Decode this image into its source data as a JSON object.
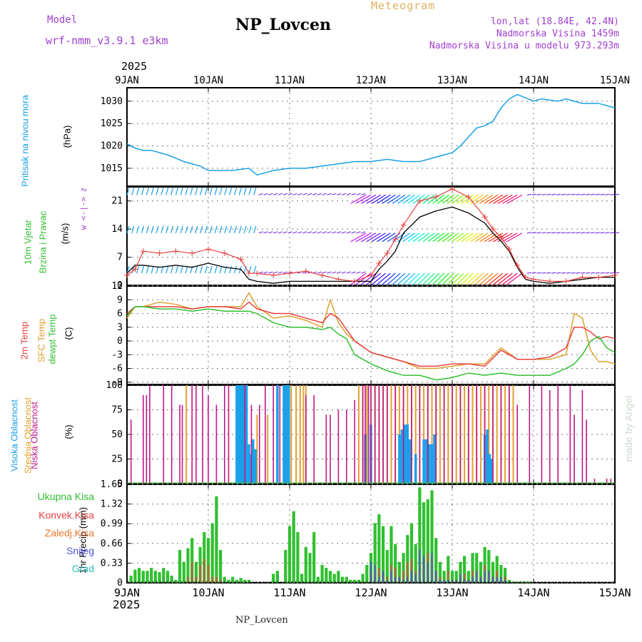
{
  "header": {
    "model_label": "Model",
    "model_value": "wrf-nmm_v3.9.1 e3km",
    "title": "NP_Lovcen",
    "meteogram": "Meteogram",
    "lonlat": "lon,lat (18.84E, 42.4N)",
    "altitude": "Nadmorska Visina 1459m",
    "model_altitude": "Nadmorska Visina u modelu 973.293m",
    "year_top": "2025",
    "year_bottom": "2025",
    "footer": "NP_Lovcen",
    "watermark": "made by Angel"
  },
  "colors": {
    "pressure": "#1aa0e8",
    "temp2m": "#e84040",
    "sfc": "#e0a030",
    "dewpt": "#30c030",
    "wind_obs": "#e84040",
    "wind_model": "#000000",
    "high_cloud": "#1aa0e8",
    "mid_cloud": "#e0a030",
    "low_cloud": "#c01888",
    "total_precip": "#30c030",
    "conv_precip": "#e84040",
    "snow": "#5050e0",
    "purple": "#a040d0"
  },
  "chart_data": [
    {
      "type": "line",
      "id": "pressure",
      "ylabel_left": "Pritisak na nivou mora",
      "unit": "(hPa)",
      "ylim": [
        1011,
        1033
      ],
      "yticks": [
        1015,
        1020,
        1025,
        1030
      ],
      "days": [
        "9JAN",
        "10JAN",
        "11JAN",
        "12JAN",
        "13JAN",
        "14JAN",
        "15JAN"
      ],
      "x": [
        0,
        0.1,
        0.2,
        0.3,
        0.5,
        0.7,
        0.9,
        1.0,
        1.1,
        1.3,
        1.5,
        1.6,
        1.8,
        2.0,
        2.2,
        2.4,
        2.6,
        2.8,
        3.0,
        3.2,
        3.4,
        3.6,
        3.8,
        4.0,
        4.1,
        4.2,
        4.3,
        4.4,
        4.5,
        4.6,
        4.7,
        4.8,
        5.0,
        5.1,
        5.3,
        5.4,
        5.6,
        5.8,
        6.0
      ],
      "y": [
        1020.5,
        1019.5,
        1019,
        1019,
        1018,
        1016.5,
        1015.5,
        1014.5,
        1014.5,
        1014.5,
        1015,
        1013.5,
        1014.5,
        1015,
        1015,
        1015.5,
        1016,
        1016.5,
        1016.5,
        1017,
        1016.5,
        1016.5,
        1017.5,
        1018.5,
        1020,
        1022,
        1024,
        1024.5,
        1025.5,
        1028.5,
        1030.5,
        1031.5,
        1030,
        1030.5,
        1030,
        1030.5,
        1029.5,
        1029.5,
        1028.5
      ]
    },
    {
      "type": "line",
      "id": "wind",
      "ylabel_left": "10m Vjetar",
      "ylabel_right": "Brzina i Pravac",
      "unit": "(m/s)",
      "compass": "w <-|-> z",
      "ylim": [
        0,
        24.5
      ],
      "yticks": [
        0,
        7,
        14,
        21
      ],
      "barb_levels": [
        3,
        13,
        22.5
      ],
      "x": [
        0,
        0.1,
        0.2,
        0.4,
        0.6,
        0.8,
        1.0,
        1.2,
        1.4,
        1.5,
        1.6,
        1.8,
        2.0,
        2.2,
        2.4,
        2.6,
        2.8,
        3.0,
        3.1,
        3.2,
        3.3,
        3.4,
        3.6,
        3.8,
        4.0,
        4.2,
        4.4,
        4.5,
        4.6,
        4.7,
        4.8,
        4.9,
        5.0,
        5.2,
        5.4,
        5.6,
        5.8,
        6.0
      ],
      "obs": [
        2.5,
        4,
        8.5,
        8,
        8.5,
        8,
        9,
        8,
        6.5,
        3,
        3,
        2.5,
        3,
        3.5,
        2.5,
        1.5,
        1,
        2.5,
        5.5,
        8,
        11.5,
        15,
        21,
        22,
        24,
        22,
        17,
        14,
        12,
        9,
        5,
        2,
        1.5,
        1,
        1,
        2,
        2,
        2.5
      ],
      "model": [
        3,
        5,
        5,
        4.5,
        5,
        4.5,
        5.5,
        4.5,
        4,
        1.5,
        1,
        0.5,
        1,
        1,
        1,
        1,
        1,
        1,
        4,
        6,
        8.5,
        13,
        17,
        18.5,
        19.5,
        18,
        15.5,
        13,
        11,
        8.5,
        4.5,
        1.5,
        1,
        0.5,
        1,
        1.5,
        2,
        2
      ]
    },
    {
      "type": "line",
      "id": "temperature",
      "ylabel_a": "2m Temp",
      "ylabel_b": "SFC Temp",
      "ylabel_c": "dewpt Temp",
      "unit": "(C)",
      "ylim": [
        -9.5,
        12
      ],
      "yticks": [
        -9,
        -6,
        -3,
        0,
        3,
        6,
        9,
        12
      ],
      "x": [
        0,
        0.1,
        0.2,
        0.4,
        0.6,
        0.8,
        1.0,
        1.2,
        1.4,
        1.5,
        1.6,
        1.8,
        2.0,
        2.2,
        2.4,
        2.5,
        2.6,
        2.7,
        2.8,
        3.0,
        3.2,
        3.4,
        3.6,
        3.8,
        4.0,
        4.2,
        4.4,
        4.6,
        4.8,
        5.0,
        5.2,
        5.4,
        5.5,
        5.6,
        5.7,
        5.8,
        5.9,
        6.0
      ],
      "t2m": [
        6,
        7.5,
        7.5,
        7.5,
        7.5,
        7,
        7.5,
        7.5,
        7,
        8.5,
        7,
        6,
        6,
        5,
        4,
        6,
        5,
        2.5,
        0,
        -2.5,
        -3.5,
        -4.5,
        -5.5,
        -5.5,
        -5,
        -5,
        -5.5,
        -2,
        -4,
        -4,
        -3.5,
        -1.5,
        3,
        3,
        2,
        0.5,
        1,
        0.5
      ],
      "sfc": [
        5,
        7.5,
        7.5,
        8.5,
        8,
        7,
        7.5,
        7.5,
        7.5,
        10.5,
        7.5,
        5,
        5.5,
        4.5,
        3,
        9,
        4,
        1.5,
        0,
        -2.5,
        -3.5,
        -4.5,
        -6,
        -6,
        -5.5,
        -5,
        -5,
        -1.5,
        -4,
        -4,
        -4,
        -3,
        6,
        5,
        -2,
        -4.5,
        -4.5,
        -5
      ],
      "dewpt": [
        5.5,
        7.5,
        7.5,
        7,
        7,
        6.5,
        7,
        6.5,
        6.5,
        6.5,
        6,
        4,
        3,
        3,
        2.5,
        3,
        1.5,
        0.5,
        -3,
        -5,
        -6.5,
        -7.5,
        -7.5,
        -8.5,
        -8,
        -7,
        -7.5,
        -7,
        -7.5,
        -7.5,
        -7.5,
        -6,
        -5,
        -3,
        0,
        1,
        -1.5,
        -2.5
      ]
    },
    {
      "type": "bar",
      "id": "clouds",
      "ylabel_a": "Visoka Oblacnost",
      "ylabel_b": "Srednja Oblacnost",
      "ylabel_c": "Niska Oblacnost",
      "unit": "(%)",
      "ylim": [
        0,
        100
      ],
      "yticks": [
        0,
        25,
        50,
        75,
        100
      ],
      "high": {
        "x": [
          1.35,
          1.38,
          1.41,
          1.44,
          1.47,
          1.5,
          1.52,
          1.55,
          1.58,
          1.85,
          1.93,
          1.96,
          1.99,
          2.93,
          3.0,
          3.35,
          3.38,
          3.42,
          3.45,
          3.48,
          3.55,
          3.65,
          3.68,
          3.72,
          3.75,
          3.78,
          4.4,
          4.43,
          4.46,
          4.48
        ],
        "v": [
          100,
          100,
          100,
          100,
          100,
          40,
          30,
          45,
          35,
          100,
          100,
          100,
          100,
          50,
          60,
          50,
          55,
          60,
          60,
          45,
          30,
          45,
          45,
          40,
          40,
          50,
          50,
          55,
          30,
          25
        ]
      },
      "mid": {
        "x": [
          0.73,
          1.4,
          1.6,
          1.73,
          1.95,
          2.02,
          2.08,
          2.13,
          2.17,
          2.2,
          2.85,
          2.9,
          2.95,
          3.0,
          3.05,
          3.1,
          3.15,
          3.2,
          3.25,
          3.3,
          3.35,
          3.4,
          3.45,
          3.5,
          3.55,
          3.6,
          3.65,
          3.7,
          3.75,
          3.8,
          3.85,
          3.9,
          3.95,
          4.0,
          4.05,
          4.1,
          4.15,
          4.2,
          4.25,
          4.3,
          4.35,
          4.4,
          4.45,
          4.5,
          4.55,
          4.6,
          4.65,
          4.7,
          4.75
        ],
        "v": [
          100,
          60,
          70,
          70,
          100,
          100,
          100,
          100,
          100,
          100,
          100,
          100,
          100,
          100,
          100,
          100,
          100,
          100,
          100,
          100,
          100,
          100,
          100,
          100,
          100,
          100,
          100,
          100,
          100,
          100,
          100,
          100,
          100,
          100,
          100,
          100,
          100,
          100,
          100,
          100,
          100,
          100,
          100,
          100,
          100,
          100,
          100,
          100,
          100
        ]
      },
      "low": {
        "x": [
          0.05,
          0.2,
          0.24,
          0.28,
          0.45,
          0.55,
          0.65,
          0.68,
          0.8,
          0.85,
          0.93,
          1.0,
          1.1,
          1.2,
          1.25,
          1.45,
          1.53,
          1.63,
          1.7,
          1.8,
          1.88,
          2.2,
          2.3,
          2.45,
          2.5,
          2.6,
          2.7,
          2.8,
          2.9,
          2.93,
          2.97,
          3.0,
          3.05,
          3.1,
          3.15,
          3.2,
          3.3,
          3.4,
          3.5,
          3.6,
          3.7,
          3.8,
          3.9,
          4.0,
          4.1,
          4.2,
          4.3,
          4.4,
          4.5,
          4.6,
          4.7,
          4.8,
          4.95,
          5.1,
          5.2,
          5.3,
          5.45,
          5.5,
          5.6,
          5.65,
          5.75,
          5.9,
          5.95
        ],
        "v": [
          65,
          90,
          90,
          100,
          100,
          100,
          80,
          80,
          100,
          100,
          100,
          90,
          80,
          100,
          100,
          100,
          80,
          80,
          100,
          100,
          100,
          90,
          90,
          70,
          70,
          75,
          75,
          85,
          100,
          100,
          100,
          100,
          100,
          100,
          100,
          100,
          100,
          100,
          100,
          100,
          100,
          100,
          100,
          100,
          100,
          100,
          100,
          100,
          100,
          100,
          100,
          80,
          100,
          100,
          95,
          100,
          100,
          70,
          95,
          65,
          5,
          5,
          5
        ]
      }
    },
    {
      "type": "bar",
      "id": "precip",
      "legend": [
        "Ukupna Kisa",
        "Konvek.Kisa",
        "Zaledj.Kisa",
        "Snijeg",
        "Grad"
      ],
      "unit_label": "1hr Precip (mm)",
      "ylim": [
        0,
        1.65
      ],
      "yticks": [
        0,
        0.33,
        0.66,
        0.99,
        1.32,
        1.65
      ],
      "days": [
        "9JAN",
        "10JAN",
        "11JAN",
        "12JAN",
        "13JAN",
        "14JAN",
        "15JAN"
      ],
      "x": [
        0.05,
        0.1,
        0.15,
        0.2,
        0.25,
        0.3,
        0.35,
        0.4,
        0.45,
        0.5,
        0.55,
        0.6,
        0.65,
        0.7,
        0.75,
        0.8,
        0.85,
        0.9,
        0.95,
        1.0,
        1.05,
        1.1,
        1.15,
        1.2,
        1.25,
        1.3,
        1.35,
        1.4,
        1.45,
        1.5,
        1.8,
        1.85,
        1.95,
        2.0,
        2.05,
        2.1,
        2.15,
        2.2,
        2.25,
        2.3,
        2.35,
        2.4,
        2.45,
        2.5,
        2.55,
        2.6,
        2.65,
        2.7,
        2.75,
        2.8,
        2.85,
        2.9,
        2.95,
        3.0,
        3.05,
        3.1,
        3.15,
        3.2,
        3.25,
        3.3,
        3.35,
        3.4,
        3.45,
        3.5,
        3.55,
        3.6,
        3.65,
        3.7,
        3.75,
        3.8,
        3.85,
        3.9,
        3.95,
        4.0,
        4.05,
        4.1,
        4.15,
        4.2,
        4.25,
        4.3,
        4.35,
        4.4,
        4.45,
        4.5,
        4.55,
        4.6,
        4.65,
        4.7,
        4.75,
        4.8,
        4.85,
        4.9,
        4.95
      ],
      "total": [
        0.12,
        0.22,
        0.25,
        0.2,
        0.2,
        0.25,
        0.2,
        0.18,
        0.25,
        0.2,
        0.12,
        0.05,
        0.55,
        0.35,
        0.58,
        0.75,
        0.35,
        0.6,
        0.85,
        0.75,
        1.0,
        1.45,
        0.55,
        0.1,
        0.05,
        0.1,
        0.05,
        0.08,
        0.05,
        0.05,
        0.15,
        0.2,
        0.55,
        0.95,
        1.2,
        0.85,
        0.15,
        0.6,
        0.5,
        0.85,
        0.1,
        0.3,
        0.25,
        0.2,
        0.15,
        0.2,
        0.1,
        0.1,
        0.05,
        0.05,
        0.05,
        0.15,
        0.3,
        0.5,
        1.0,
        1.15,
        0.95,
        0.55,
        0.95,
        0.65,
        0.35,
        0.5,
        0.8,
        1.0,
        0.65,
        1.6,
        1.35,
        1.4,
        1.55,
        0.75,
        0.35,
        0.2,
        0.45,
        0.2,
        0.2,
        0.35,
        0.45,
        0.2,
        0.5,
        0.5,
        0.35,
        0.6,
        0.55,
        0.35,
        0.45,
        0.3,
        0.25,
        0.05,
        0.02,
        0.02,
        0.02,
        0.02,
        0.02
      ],
      "conv": [
        0,
        0,
        0,
        0,
        0,
        0,
        0,
        0,
        0,
        0,
        0,
        0,
        0,
        0,
        0.1,
        0.35,
        0.1,
        0.3,
        0.4,
        0.3,
        0.1,
        0.1,
        0.05,
        0,
        0,
        0,
        0,
        0,
        0,
        0,
        0,
        0,
        0,
        0,
        0,
        0,
        0,
        0,
        0,
        0,
        0,
        0,
        0,
        0,
        0,
        0,
        0,
        0,
        0,
        0,
        0,
        0,
        0,
        0.15,
        0.2,
        0.25,
        0.15,
        0.1,
        0.3,
        0.25,
        0.1,
        0.2,
        0.35,
        0.4,
        0.2,
        0.3,
        0.4,
        0.5,
        0.4,
        0.2,
        0.1,
        0.05,
        0.2,
        0.05,
        0.05,
        0.1,
        0.15,
        0.05,
        0.2,
        0.2,
        0.1,
        0.3,
        0.2,
        0.1,
        0.2,
        0.1,
        0.1,
        0,
        0,
        0,
        0,
        0,
        0
      ],
      "snow": [
        0,
        0,
        0,
        0,
        0,
        0,
        0,
        0,
        0,
        0,
        0,
        0,
        0,
        0,
        0,
        0,
        0,
        0,
        0,
        0,
        0,
        0,
        0,
        0,
        0,
        0,
        0,
        0,
        0,
        0,
        0,
        0,
        0,
        0,
        0,
        0,
        0,
        0,
        0,
        0,
        0,
        0,
        0,
        0,
        0,
        0,
        0,
        0,
        0,
        0,
        0,
        0,
        0,
        0.35,
        0.3,
        0.1,
        0.2,
        0.05,
        0.2,
        0.1,
        0.1,
        0.05,
        0.1,
        0.2,
        0.15,
        0.55,
        0.45,
        0.35,
        0.5,
        0.2,
        0.05,
        0.05,
        0.05,
        0.05,
        0.05,
        0.15,
        0.05,
        0.05,
        0.1,
        0.2,
        0.1,
        0.2,
        0.2,
        0.1,
        0.1,
        0.1,
        0.05,
        0,
        0,
        0,
        0,
        0,
        0
      ]
    }
  ]
}
